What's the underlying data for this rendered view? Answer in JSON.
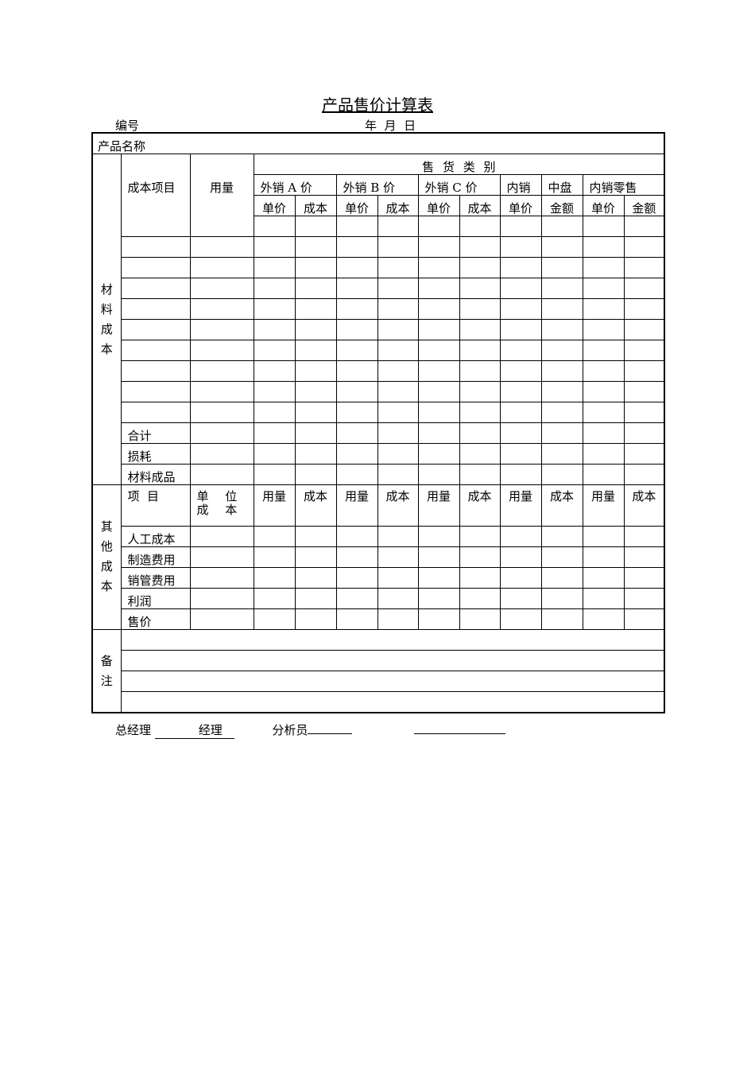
{
  "title": "产品售价计算表",
  "meta": {
    "number_label": "编号",
    "date_label": "年  月  日"
  },
  "table": {
    "product_name_label": "产品名称",
    "material_cost_label": "材\n料\n成\n本",
    "other_cost_label": "其\n他\n成\n本",
    "remarks_label": "备\n注",
    "cost_item_label": "成本项目",
    "usage_label": "用量",
    "sales_category_label": "售 货 类 别",
    "groups": [
      "外销 A 价",
      "外销 B 价",
      "外销 C 价",
      "内销",
      "中盘",
      "内销零售"
    ],
    "subheaders": [
      "单价",
      "成本",
      "单价",
      "成本",
      "单价",
      "成本",
      "单价",
      "金额",
      "单价",
      "金额"
    ],
    "material_rows": [
      "",
      "",
      "",
      "",
      "",
      "",
      "",
      "",
      "",
      "合计",
      "损耗",
      "材料成品"
    ],
    "other_header": {
      "item": "项  目",
      "unit_cost": "单 位 成 本",
      "cols": [
        "用量",
        "成本",
        "用量",
        "成本",
        "用量",
        "成本",
        "用量",
        "成本",
        "用量",
        "成本"
      ]
    },
    "other_rows": [
      "人工成本",
      "制造费用",
      "销管费用",
      "利润",
      "售价"
    ],
    "remarks_rows": 4
  },
  "footer": {
    "gm_label": "总经理",
    "manager_label": "经理",
    "analyst_label": "分析员"
  }
}
